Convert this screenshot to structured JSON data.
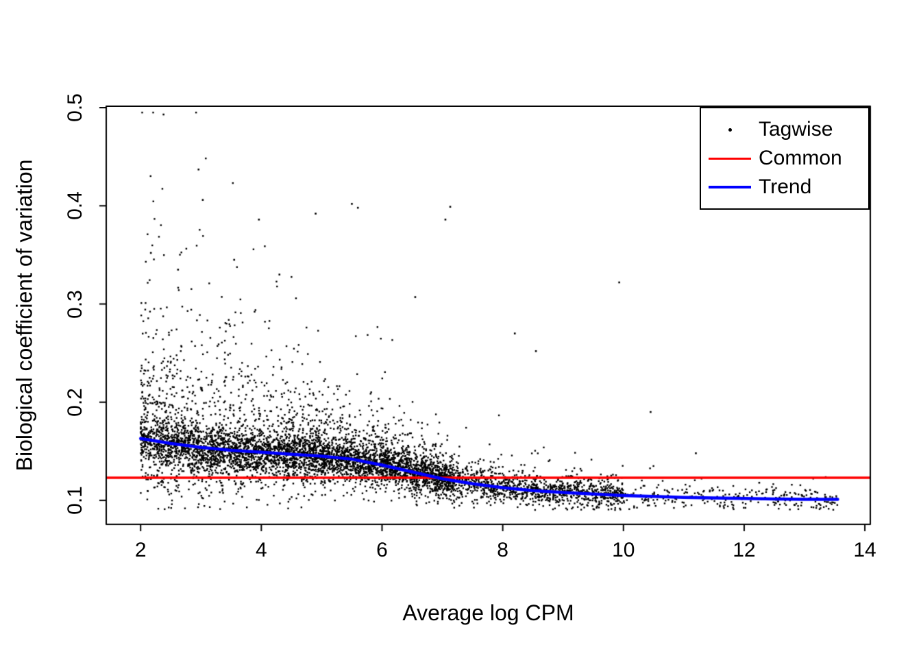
{
  "figure": {
    "background": "#ffffff",
    "text_color": "#000000"
  },
  "chart_data": {
    "type": "scatter",
    "title": "",
    "xlabel": "Average log CPM",
    "ylabel": "Biological coefficient of variation",
    "xlim": [
      1.43,
      14.09
    ],
    "ylim": [
      0.0756,
      0.5014
    ],
    "x_ticks": [
      2,
      4,
      6,
      8,
      10,
      12,
      14
    ],
    "y_ticks": [
      0.1,
      0.2,
      0.3,
      0.4,
      0.5
    ],
    "grid": false,
    "legend": {
      "position": "top-right",
      "entries": [
        "Tagwise",
        "Common",
        "Trend"
      ]
    },
    "tagwise": {
      "label": "Tagwise",
      "color": "#000000",
      "marker": "point",
      "n_points": 6500,
      "seed": 7,
      "x_range": [
        2.0,
        13.58
      ],
      "y_range": [
        0.09,
        0.495
      ],
      "outliers": [
        [
          2.38,
          0.493
        ],
        [
          2.17,
          0.352
        ],
        [
          2.62,
          0.335
        ],
        [
          2.96,
          0.437
        ],
        [
          3.03,
          0.406
        ],
        [
          3.55,
          0.345
        ],
        [
          3.96,
          0.386
        ],
        [
          4.3,
          0.33
        ],
        [
          4.9,
          0.392
        ],
        [
          5.5,
          0.402
        ],
        [
          5.6,
          0.398
        ],
        [
          6.55,
          0.307
        ],
        [
          7.05,
          0.386
        ],
        [
          7.13,
          0.399
        ],
        [
          8.2,
          0.27
        ],
        [
          8.55,
          0.252
        ],
        [
          9.93,
          0.322
        ],
        [
          10.45,
          0.19
        ],
        [
          11.2,
          0.148
        ],
        [
          12.25,
          0.118
        ]
      ]
    },
    "common_line": {
      "label": "Common",
      "color": "#FF0000",
      "bcv": 0.123
    },
    "trend_line": {
      "label": "Trend",
      "color": "#0000FF",
      "x": [
        2.0,
        2.5,
        3.0,
        3.5,
        4.0,
        4.5,
        5.0,
        5.5,
        6.0,
        6.5,
        7.0,
        7.5,
        8.0,
        8.5,
        9.0,
        9.5,
        10.0,
        10.5,
        11.0,
        11.5,
        12.0,
        12.5,
        13.0,
        13.55
      ],
      "y": [
        0.163,
        0.158,
        0.154,
        0.151,
        0.149,
        0.147,
        0.145,
        0.142,
        0.136,
        0.129,
        0.122,
        0.117,
        0.113,
        0.11,
        0.108,
        0.1065,
        0.105,
        0.104,
        0.103,
        0.1025,
        0.102,
        0.1015,
        0.101,
        0.101
      ]
    }
  }
}
